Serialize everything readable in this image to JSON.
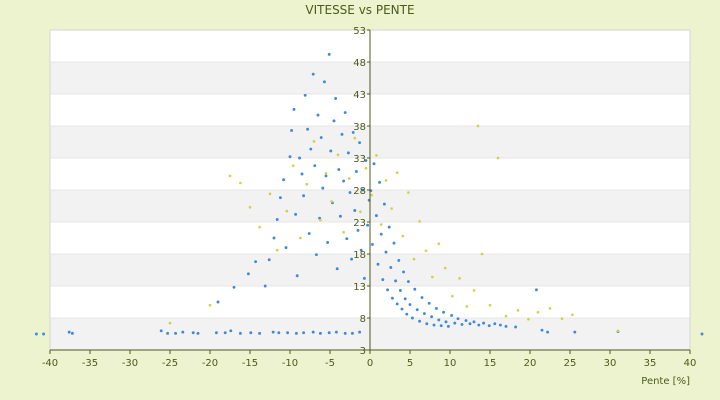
{
  "chart_data": {
    "type": "scatter",
    "title": "VITESSE vs PENTE",
    "xlabel": "Pente [%]",
    "ylabel": "",
    "xlim": [
      -40,
      40
    ],
    "ylim": [
      3,
      53
    ],
    "x_ticks": [
      -40,
      -35,
      -30,
      -25,
      -20,
      -15,
      -10,
      -5,
      0,
      5,
      10,
      15,
      20,
      25,
      30,
      35,
      40
    ],
    "y_ticks": [
      3,
      8,
      13,
      18,
      23,
      28,
      33,
      38,
      43,
      48,
      53
    ],
    "grid": true,
    "legend": "none",
    "colors": {
      "background": "#eef3cf",
      "plot_background": "#ffffff",
      "band": "#f2f2f2",
      "axis": "#4c5a1a",
      "series_1": "#3f8ad8",
      "series_2": "#d2d248"
    },
    "series": [
      {
        "values": [
          [
            -41.7,
            5.5
          ],
          [
            -40.8,
            5.5
          ],
          [
            -37.6,
            5.8
          ],
          [
            -37.2,
            5.6
          ],
          [
            -26.1,
            6.0
          ],
          [
            -25.3,
            5.6
          ],
          [
            -24.3,
            5.6
          ],
          [
            -23.4,
            5.8
          ],
          [
            -22.1,
            5.7
          ],
          [
            -21.5,
            5.6
          ],
          [
            -19.2,
            5.7
          ],
          [
            -18.1,
            5.7
          ],
          [
            -17.4,
            6.0
          ],
          [
            -16.2,
            5.6
          ],
          [
            -14.9,
            5.7
          ],
          [
            -13.8,
            5.6
          ],
          [
            -12.1,
            5.8
          ],
          [
            -11.4,
            5.7
          ],
          [
            -10.3,
            5.7
          ],
          [
            -9.2,
            5.6
          ],
          [
            -8.3,
            5.7
          ],
          [
            -7.1,
            5.8
          ],
          [
            -6.2,
            5.6
          ],
          [
            -5.1,
            5.7
          ],
          [
            -4.2,
            5.8
          ],
          [
            -3.1,
            5.6
          ],
          [
            -2.2,
            5.6
          ],
          [
            -1.3,
            5.8
          ],
          [
            -19.0,
            10.5
          ],
          [
            -17.0,
            12.8
          ],
          [
            -15.2,
            14.9
          ],
          [
            -14.3,
            16.8
          ],
          [
            -13.1,
            13.0
          ],
          [
            -12.6,
            17.1
          ],
          [
            -12.0,
            20.5
          ],
          [
            -11.6,
            23.4
          ],
          [
            -11.2,
            26.8
          ],
          [
            -10.8,
            29.6
          ],
          [
            -10.5,
            19.0
          ],
          [
            -10.0,
            33.2
          ],
          [
            -9.8,
            37.3
          ],
          [
            -9.5,
            40.6
          ],
          [
            -9.3,
            24.2
          ],
          [
            -9.1,
            14.6
          ],
          [
            -8.8,
            33.0
          ],
          [
            -8.5,
            30.5
          ],
          [
            -8.3,
            27.1
          ],
          [
            -8.1,
            42.8
          ],
          [
            -7.8,
            37.5
          ],
          [
            -7.6,
            21.2
          ],
          [
            -7.4,
            34.4
          ],
          [
            -7.1,
            46.1
          ],
          [
            -6.9,
            31.8
          ],
          [
            -6.7,
            17.9
          ],
          [
            -6.5,
            39.7
          ],
          [
            -6.3,
            23.6
          ],
          [
            -6.1,
            36.2
          ],
          [
            -5.9,
            28.3
          ],
          [
            -5.7,
            44.9
          ],
          [
            -5.5,
            30.2
          ],
          [
            -5.3,
            19.8
          ],
          [
            -5.1,
            49.2
          ],
          [
            -4.9,
            34.1
          ],
          [
            -4.7,
            26.0
          ],
          [
            -4.5,
            38.8
          ],
          [
            -4.3,
            42.3
          ],
          [
            -4.1,
            15.7
          ],
          [
            -3.9,
            31.2
          ],
          [
            -3.7,
            23.9
          ],
          [
            -3.5,
            36.7
          ],
          [
            -3.3,
            29.4
          ],
          [
            -3.1,
            40.1
          ],
          [
            -2.9,
            20.4
          ],
          [
            -2.7,
            33.8
          ],
          [
            -2.5,
            27.6
          ],
          [
            -2.3,
            17.2
          ],
          [
            -2.1,
            37.0
          ],
          [
            -1.9,
            24.8
          ],
          [
            -1.7,
            30.9
          ],
          [
            -1.5,
            21.7
          ],
          [
            -1.3,
            35.4
          ],
          [
            -1.1,
            18.6
          ],
          [
            -0.9,
            28.0
          ],
          [
            -0.7,
            14.2
          ],
          [
            -0.5,
            32.6
          ],
          [
            -0.3,
            22.5
          ],
          [
            -0.1,
            26.4
          ],
          [
            0.1,
            27.9
          ],
          [
            0.3,
            19.5
          ],
          [
            0.5,
            32.1
          ],
          [
            0.8,
            24.0
          ],
          [
            1.0,
            16.4
          ],
          [
            1.2,
            29.2
          ],
          [
            1.4,
            21.1
          ],
          [
            1.6,
            14.0
          ],
          [
            1.8,
            25.8
          ],
          [
            2.0,
            18.3
          ],
          [
            2.2,
            12.4
          ],
          [
            2.4,
            22.2
          ],
          [
            2.6,
            15.9
          ],
          [
            2.8,
            11.1
          ],
          [
            3.0,
            19.7
          ],
          [
            3.2,
            13.8
          ],
          [
            3.4,
            10.2
          ],
          [
            3.6,
            17.0
          ],
          [
            3.8,
            12.3
          ],
          [
            4.0,
            9.4
          ],
          [
            4.2,
            15.2
          ],
          [
            4.4,
            11.0
          ],
          [
            4.6,
            8.6
          ],
          [
            4.8,
            13.7
          ],
          [
            5.0,
            10.1
          ],
          [
            5.3,
            8.0
          ],
          [
            5.6,
            12.5
          ],
          [
            5.9,
            9.3
          ],
          [
            6.2,
            7.5
          ],
          [
            6.5,
            11.2
          ],
          [
            6.8,
            8.7
          ],
          [
            7.1,
            7.1
          ],
          [
            7.4,
            10.3
          ],
          [
            7.7,
            8.2
          ],
          [
            8.0,
            6.9
          ],
          [
            8.3,
            9.5
          ],
          [
            8.6,
            7.7
          ],
          [
            8.9,
            6.8
          ],
          [
            9.2,
            8.9
          ],
          [
            9.5,
            7.4
          ],
          [
            9.8,
            6.7
          ],
          [
            10.2,
            8.4
          ],
          [
            10.6,
            7.2
          ],
          [
            11.0,
            7.9
          ],
          [
            11.5,
            7.0
          ],
          [
            12.0,
            7.6
          ],
          [
            12.5,
            7.1
          ],
          [
            13.0,
            7.4
          ],
          [
            13.6,
            6.9
          ],
          [
            14.2,
            7.2
          ],
          [
            14.9,
            6.8
          ],
          [
            15.6,
            7.1
          ],
          [
            16.3,
            6.9
          ],
          [
            17.0,
            6.7
          ],
          [
            18.2,
            6.6
          ],
          [
            20.8,
            12.4
          ],
          [
            21.5,
            6.1
          ],
          [
            22.2,
            5.8
          ],
          [
            25.6,
            5.8
          ],
          [
            31.0,
            5.9
          ],
          [
            41.5,
            5.5
          ]
        ]
      },
      {
        "values": [
          [
            -25.0,
            7.2
          ],
          [
            -20.0,
            10.0
          ],
          [
            -17.5,
            30.2
          ],
          [
            -16.2,
            29.1
          ],
          [
            -15.0,
            25.3
          ],
          [
            -13.8,
            22.2
          ],
          [
            -12.5,
            27.4
          ],
          [
            -11.6,
            18.6
          ],
          [
            -10.4,
            24.7
          ],
          [
            -9.6,
            31.8
          ],
          [
            -8.7,
            20.5
          ],
          [
            -7.9,
            28.9
          ],
          [
            -7.0,
            35.6
          ],
          [
            -6.2,
            23.3
          ],
          [
            -5.5,
            30.6
          ],
          [
            -4.8,
            26.2
          ],
          [
            -4.0,
            33.5
          ],
          [
            -3.3,
            21.4
          ],
          [
            -2.6,
            29.8
          ],
          [
            -1.9,
            36.1
          ],
          [
            -1.2,
            24.6
          ],
          [
            -0.5,
            31.4
          ],
          [
            0.2,
            27.2
          ],
          [
            0.8,
            33.4
          ],
          [
            1.4,
            22.6
          ],
          [
            2.0,
            29.5
          ],
          [
            2.7,
            25.1
          ],
          [
            3.4,
            30.7
          ],
          [
            4.1,
            20.8
          ],
          [
            4.8,
            27.6
          ],
          [
            5.5,
            17.2
          ],
          [
            6.2,
            23.1
          ],
          [
            7.0,
            18.5
          ],
          [
            7.8,
            14.4
          ],
          [
            8.6,
            19.6
          ],
          [
            9.4,
            15.8
          ],
          [
            10.3,
            11.4
          ],
          [
            11.2,
            14.2
          ],
          [
            12.1,
            9.8
          ],
          [
            13.0,
            12.3
          ],
          [
            13.5,
            38.0
          ],
          [
            14.0,
            18.0
          ],
          [
            15.0,
            10.0
          ],
          [
            16.0,
            33.0
          ],
          [
            17.0,
            8.3
          ],
          [
            18.5,
            9.2
          ],
          [
            19.8,
            7.8
          ],
          [
            21.0,
            8.9
          ],
          [
            22.5,
            9.5
          ],
          [
            24.0,
            7.9
          ],
          [
            25.3,
            8.5
          ],
          [
            31.0,
            6.0
          ]
        ]
      }
    ]
  }
}
